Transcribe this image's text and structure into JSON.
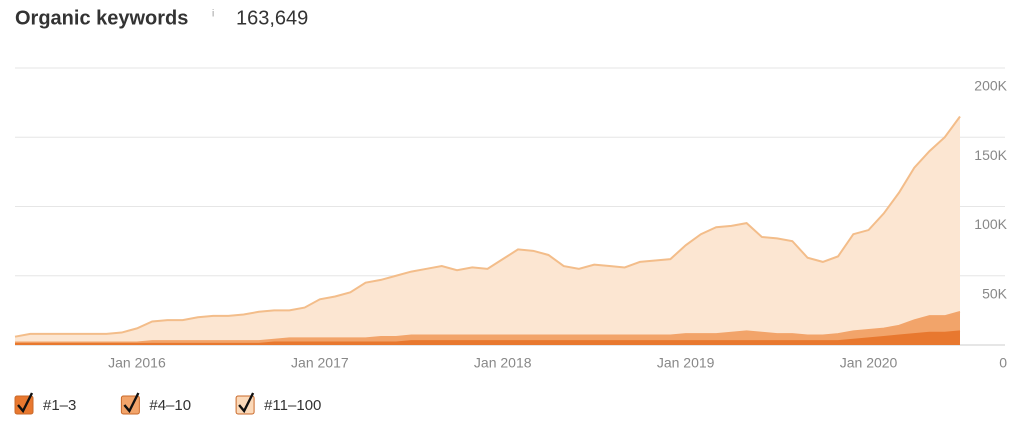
{
  "header": {
    "title": "Organic keywords",
    "info": "i",
    "total": "163,649"
  },
  "chart_data": {
    "type": "stacked-area",
    "categories": [
      null,
      null,
      null,
      null,
      null,
      null,
      null,
      null,
      "Jan 2016",
      null,
      null,
      null,
      null,
      null,
      null,
      null,
      null,
      null,
      null,
      null,
      "Jan 2017",
      null,
      null,
      null,
      null,
      null,
      null,
      null,
      null,
      null,
      null,
      null,
      "Jan 2018",
      null,
      null,
      null,
      null,
      null,
      null,
      null,
      null,
      null,
      null,
      null,
      "Jan 2019",
      null,
      null,
      null,
      null,
      null,
      null,
      null,
      null,
      null,
      null,
      null,
      "Jan 2020",
      null,
      null,
      null,
      null,
      null,
      null
    ],
    "series": [
      {
        "name": "#1–3",
        "color": "#e8782f",
        "values": [
          1000,
          1000,
          1000,
          1000,
          1000,
          1000,
          1000,
          1000,
          1000,
          1000,
          1000,
          1000,
          1000,
          1000,
          1000,
          1000,
          1000,
          2000,
          2000,
          2000,
          2000,
          2000,
          2000,
          2000,
          2000,
          2000,
          3000,
          3000,
          3000,
          3000,
          3000,
          3000,
          3000,
          3000,
          3000,
          3000,
          3000,
          3000,
          3000,
          3000,
          3000,
          3000,
          3000,
          3000,
          3000,
          3000,
          3000,
          3000,
          3000,
          3000,
          3000,
          3000,
          3000,
          3000,
          3000,
          4000,
          5000,
          6000,
          7000,
          8000,
          9000,
          9000,
          10000
        ]
      },
      {
        "name": "#4–10",
        "color": "#f2a46a",
        "values": [
          1000,
          1000,
          1000,
          1000,
          1000,
          1000,
          1000,
          1000,
          1000,
          2000,
          2000,
          2000,
          2000,
          2000,
          2000,
          2000,
          2000,
          2000,
          3000,
          3000,
          3000,
          3000,
          3000,
          3000,
          4000,
          4000,
          4000,
          4000,
          4000,
          4000,
          4000,
          4000,
          4000,
          4000,
          4000,
          4000,
          4000,
          4000,
          4000,
          4000,
          4000,
          4000,
          4000,
          4000,
          5000,
          5000,
          5000,
          6000,
          7000,
          6000,
          5000,
          5000,
          4000,
          4000,
          5000,
          6000,
          6000,
          6000,
          7000,
          10000,
          12000,
          12000,
          14000
        ]
      },
      {
        "name": "#11–100",
        "color": "#f3bd8a",
        "values": [
          4000,
          6000,
          6000,
          6000,
          6000,
          6000,
          6000,
          7000,
          10000,
          14000,
          15000,
          15000,
          17000,
          18000,
          18000,
          19000,
          21000,
          21000,
          20000,
          22000,
          28000,
          30000,
          33000,
          40000,
          41000,
          44000,
          46000,
          48000,
          50000,
          47000,
          49000,
          48000,
          55000,
          62000,
          61000,
          58000,
          50000,
          48000,
          51000,
          50000,
          49000,
          53000,
          54000,
          55000,
          64000,
          72000,
          77000,
          77000,
          78000,
          69000,
          69000,
          67000,
          56000,
          53000,
          56000,
          70000,
          72000,
          83000,
          96000,
          110000,
          119000,
          129000,
          141000
        ]
      }
    ],
    "ylim": [
      0,
      200000
    ],
    "yticks": [
      0,
      {
        "value": 50000,
        "label": "50K"
      },
      {
        "value": 100000,
        "label": "100K"
      },
      {
        "value": 150000,
        "label": "150K"
      },
      {
        "value": 200000,
        "label": "200K"
      }
    ],
    "grid": true
  }
}
